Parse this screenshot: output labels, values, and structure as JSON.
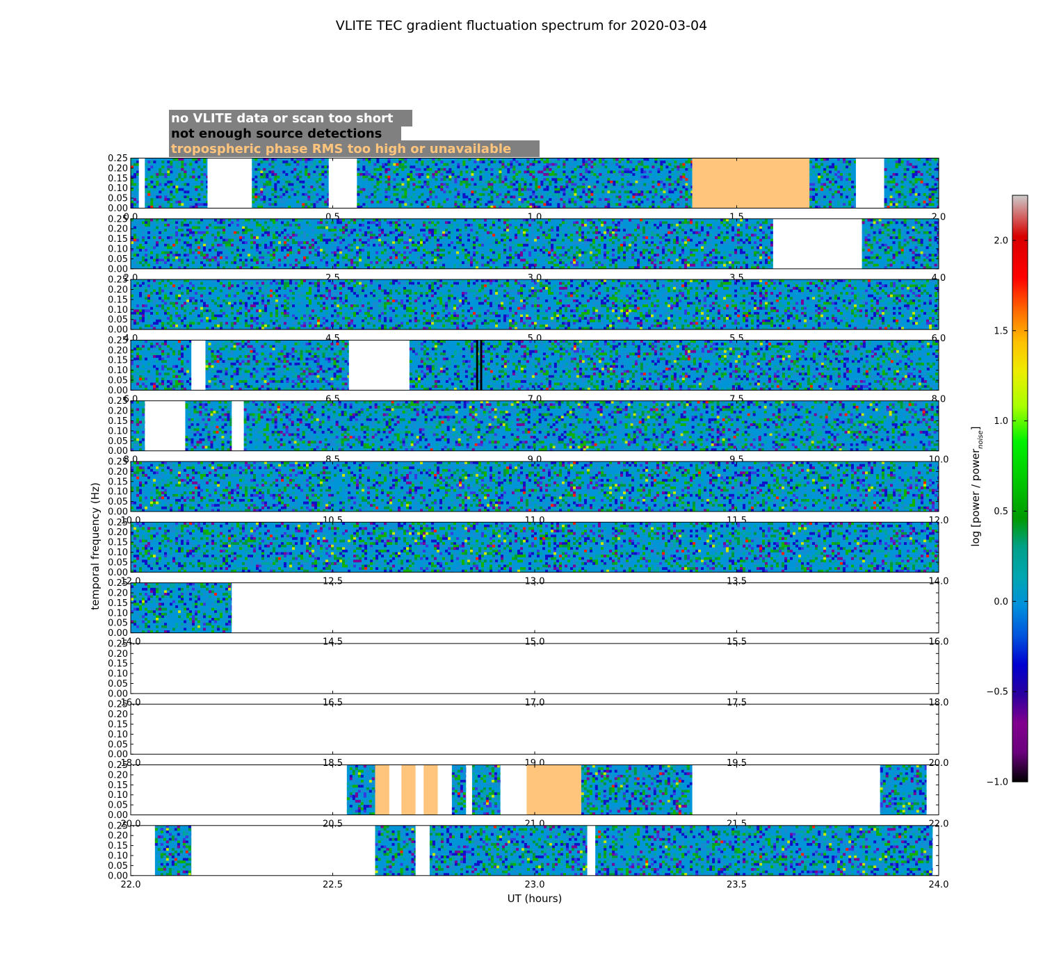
{
  "chart_data": {
    "type": "heatmap",
    "title": "VLITE TEC gradient fluctuation spectrum for 2020-03-04",
    "xlabel": "UT (hours)",
    "ylabel": "temporal frequency (Hz)",
    "colorbar_label": "log [power / power",
    "colorbar_label_subscript": "noise",
    "colorbar_label_close": "]",
    "colorbar_range": [
      -1.0,
      2.25
    ],
    "colorbar_ticks": [
      "−1.0",
      "−0.5",
      "0.0",
      "0.5",
      "1.0",
      "1.5",
      "2.0"
    ],
    "colormap": "nipy_spectral",
    "ylim": [
      0,
      0.25
    ],
    "y_ticks": [
      "0.00",
      "0.05",
      "0.10",
      "0.15",
      "0.20",
      "0.25"
    ],
    "legend": [
      {
        "label": "no VLITE data or scan too short",
        "color": "#ffffff"
      },
      {
        "label": "not enough source detections",
        "color": "#000000"
      },
      {
        "label": "tropospheric phase RMS too high or unavailable",
        "color": "#ffc57d"
      }
    ],
    "colors": {
      "baseline": "#0095d6",
      "troposphere_flag": "#ffc57d",
      "legend_box": "#808080"
    },
    "panels": [
      {
        "xlim": [
          0,
          2
        ],
        "x_ticks": [
          "0.0",
          "0.5",
          "1.0",
          "1.5",
          "2.0"
        ],
        "data_intervals": [
          [
            0,
            0.02
          ],
          [
            0.035,
            0.19
          ],
          [
            0.3,
            0.49
          ],
          [
            0.56,
            1.39
          ],
          [
            1.68,
            1.795
          ],
          [
            1.865,
            2.0
          ]
        ],
        "troposphere_flag_intervals": [
          [
            1.39,
            1.68
          ]
        ]
      },
      {
        "xlim": [
          2,
          4
        ],
        "x_ticks": [
          "2.0",
          "2.5",
          "3.0",
          "3.5",
          "4.0"
        ],
        "data_intervals": [
          [
            2.0,
            3.59
          ],
          [
            3.81,
            4.0
          ]
        ],
        "troposphere_flag_intervals": []
      },
      {
        "xlim": [
          4,
          6
        ],
        "x_ticks": [
          "4.0",
          "4.5",
          "5.0",
          "5.5",
          "6.0"
        ],
        "data_intervals": [
          [
            4.0,
            6.0
          ]
        ],
        "troposphere_flag_intervals": []
      },
      {
        "xlim": [
          6,
          8
        ],
        "x_ticks": [
          "6.0",
          "6.5",
          "7.0",
          "7.5",
          "8.0"
        ],
        "data_intervals": [
          [
            6.0,
            6.15
          ],
          [
            6.185,
            6.54
          ],
          [
            6.69,
            8.0
          ]
        ],
        "troposphere_flag_intervals": [],
        "low_source_intervals": [
          [
            6.855,
            6.86
          ],
          [
            6.865,
            6.87
          ]
        ]
      },
      {
        "xlim": [
          8,
          10
        ],
        "x_ticks": [
          "8.0",
          "8.5",
          "9.0",
          "9.5",
          "10.0"
        ],
        "data_intervals": [
          [
            8.0,
            8.035
          ],
          [
            8.135,
            8.25
          ],
          [
            8.28,
            10.0
          ]
        ],
        "troposphere_flag_intervals": []
      },
      {
        "xlim": [
          10,
          12
        ],
        "x_ticks": [
          "10.0",
          "10.5",
          "11.0",
          "11.5",
          "12.0"
        ],
        "data_intervals": [
          [
            10.0,
            12.0
          ]
        ],
        "troposphere_flag_intervals": []
      },
      {
        "xlim": [
          12,
          14
        ],
        "x_ticks": [
          "12.0",
          "12.5",
          "13.0",
          "13.5",
          "14.0"
        ],
        "data_intervals": [
          [
            12.0,
            14.0
          ]
        ],
        "troposphere_flag_intervals": []
      },
      {
        "xlim": [
          14,
          16
        ],
        "x_ticks": [
          "14.0",
          "14.5",
          "15.0",
          "15.5",
          "16.0"
        ],
        "data_intervals": [
          [
            14.0,
            14.25
          ]
        ],
        "troposphere_flag_intervals": []
      },
      {
        "xlim": [
          16,
          18
        ],
        "x_ticks": [
          "16.0",
          "16.5",
          "17.0",
          "17.5",
          "18.0"
        ],
        "data_intervals": [],
        "troposphere_flag_intervals": []
      },
      {
        "xlim": [
          18,
          20
        ],
        "x_ticks": [
          "18.0",
          "18.5",
          "19.0",
          "19.5",
          "20.0"
        ],
        "data_intervals": [],
        "troposphere_flag_intervals": []
      },
      {
        "xlim": [
          20,
          22
        ],
        "x_ticks": [
          "20.0",
          "20.5",
          "21.0",
          "21.5",
          "22.0"
        ],
        "data_intervals": [
          [
            20.535,
            20.605
          ],
          [
            20.795,
            20.83
          ],
          [
            20.845,
            20.915
          ],
          [
            21.115,
            21.39
          ],
          [
            21.855,
            21.97
          ]
        ],
        "troposphere_flag_intervals": [
          [
            20.605,
            20.64
          ],
          [
            20.67,
            20.705
          ],
          [
            20.725,
            20.76
          ],
          [
            20.98,
            21.115
          ]
        ]
      },
      {
        "xlim": [
          22,
          24
        ],
        "x_ticks": [
          "22.0",
          "22.5",
          "23.0",
          "23.5",
          "24.0"
        ],
        "data_intervals": [
          [
            22.06,
            22.15
          ],
          [
            22.605,
            22.705
          ],
          [
            22.74,
            23.13
          ],
          [
            23.15,
            23.985
          ]
        ],
        "troposphere_flag_intervals": []
      }
    ]
  }
}
